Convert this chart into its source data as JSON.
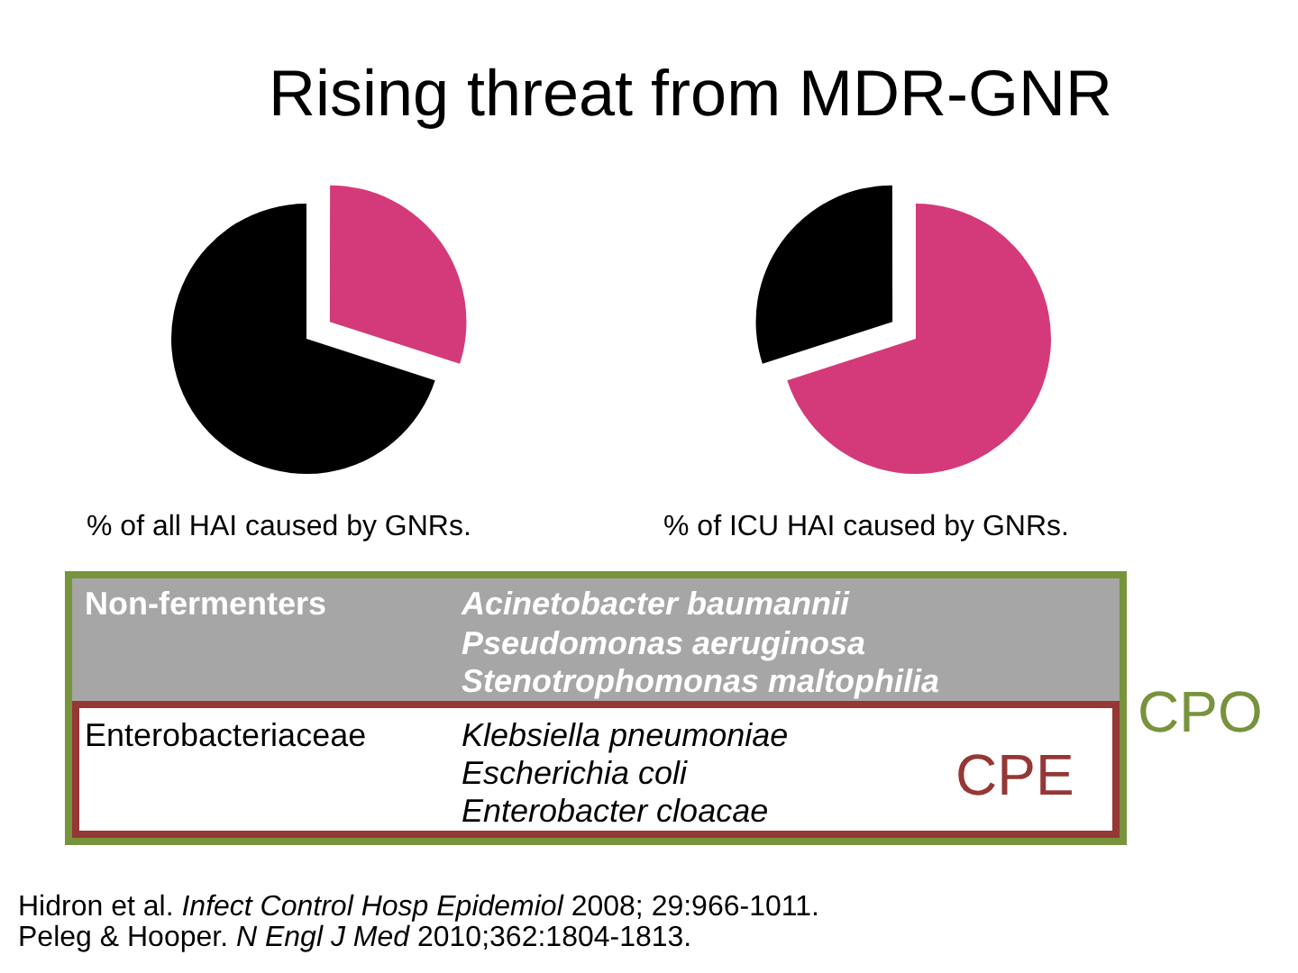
{
  "chart_data": [
    {
      "type": "other",
      "title": "Rising threat from MDR-GNR"
    },
    {
      "type": "pie",
      "title": "% of all HAI caused by GNRs.",
      "categories": [
        null,
        null
      ],
      "values": [
        30,
        70
      ],
      "colors": [
        "#d43a7a",
        "#000000"
      ]
    },
    {
      "type": "pie",
      "title": "% of ICU HAI caused by GNRs.",
      "categories": [
        null,
        null
      ],
      "values": [
        70,
        30
      ],
      "colors": [
        "#d43a7a",
        "#000000"
      ]
    },
    {
      "type": "other",
      "annotations": [
        "Non-fermenters",
        "Acinetobacter baumannii",
        "Pseudomonas aeruginosa",
        "Stenotrophomonas maltophilia",
        "Enterobacteriaceae",
        "Klebsiella pneumoniae",
        "Escherichia coli",
        "Enterobacter cloacae",
        "CPE",
        "CPO",
        "Hidron et al.",
        "Infect Control Hosp Epidemiol",
        "2008; 29:966-1011.",
        "Peleg & Hooper.",
        "N Engl J Med",
        "2010;362:1804-1813."
      ]
    }
  ]
}
